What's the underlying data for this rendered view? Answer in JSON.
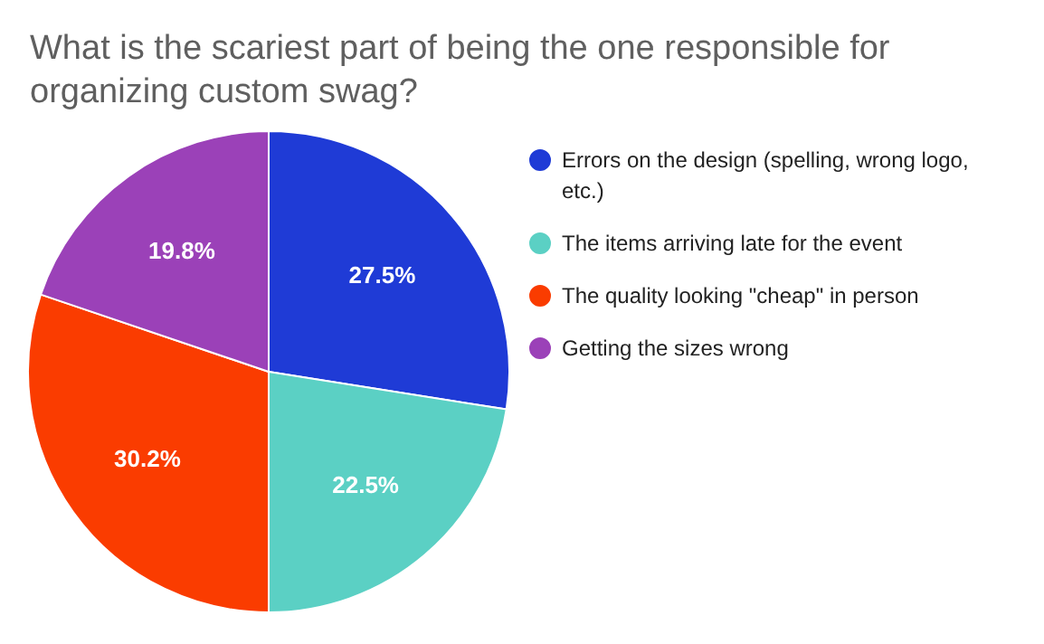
{
  "chart_data": {
    "type": "pie",
    "title": "What is the scariest part of being the one responsible for organizing custom swag?",
    "categories": [
      "Errors on the design (spelling, wrong logo, etc.)",
      "The items arriving late for the event",
      "The quality looking \"cheap\" in person",
      "Getting the sizes wrong"
    ],
    "values": [
      27.5,
      22.5,
      30.2,
      19.8
    ],
    "value_labels": [
      "27.5%",
      "22.5%",
      "30.2%",
      "19.8%"
    ],
    "colors": [
      "#1f3bd6",
      "#5bd0c4",
      "#fa3c00",
      "#9b41b8"
    ],
    "legend": "right"
  }
}
